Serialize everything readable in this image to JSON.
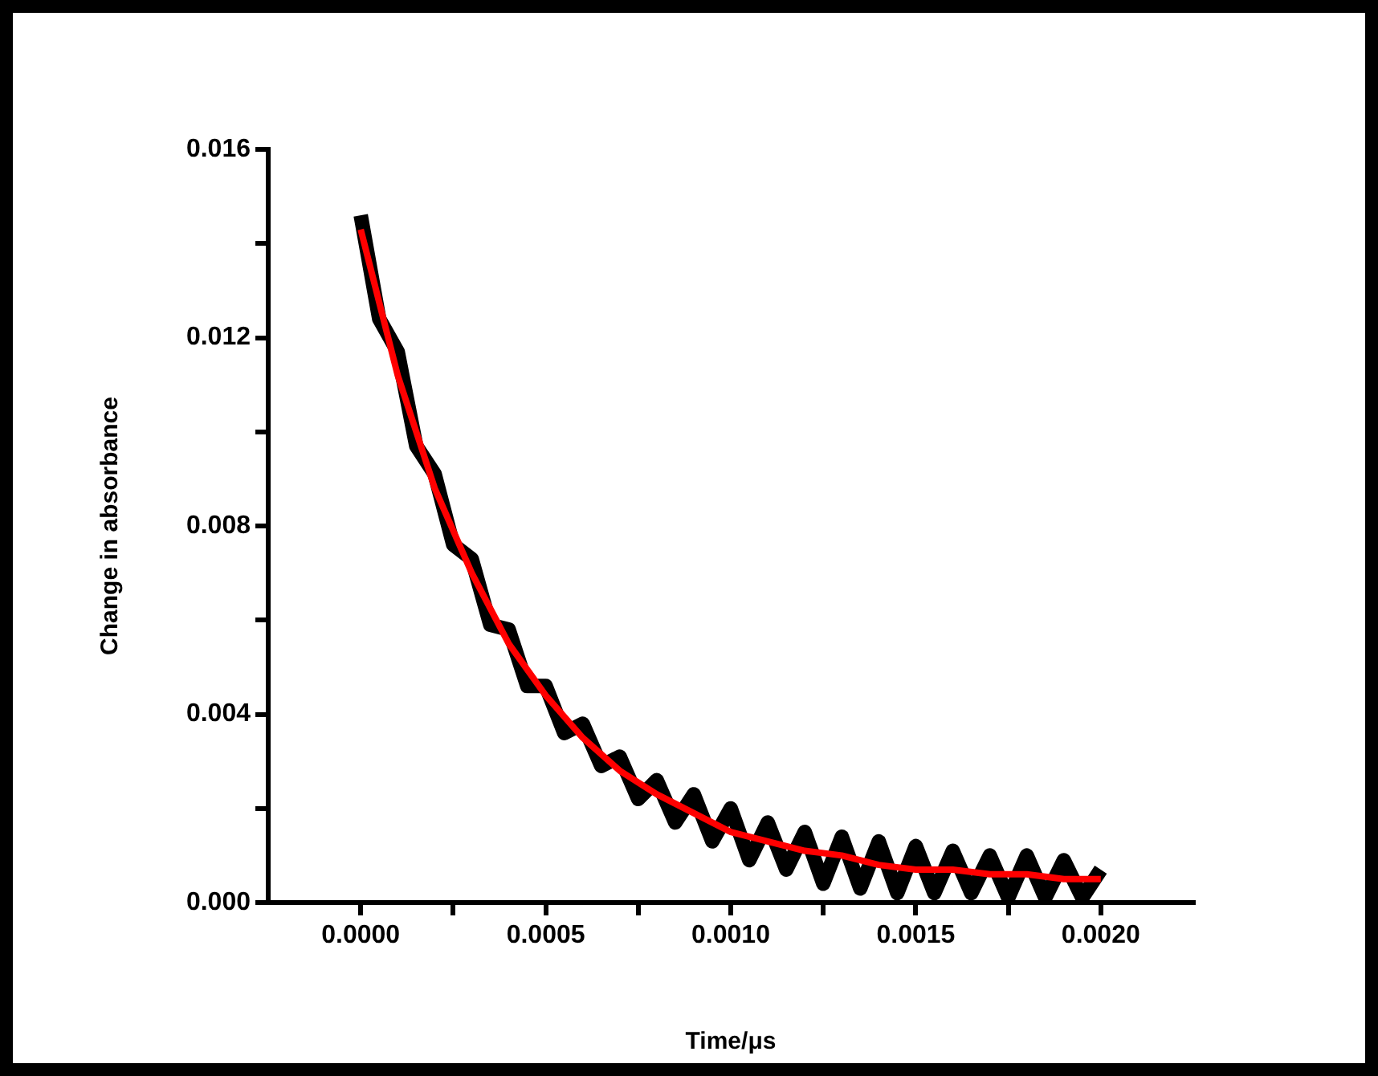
{
  "chart_data": {
    "type": "line",
    "xlabel": "Time/μs",
    "ylabel": "Change in absorbance",
    "xlim": [
      -0.00025,
      0.00225
    ],
    "xticks": [
      {
        "value": 0,
        "label": "0.0000"
      },
      {
        "value": 0.00025,
        "label": null
      },
      {
        "value": 0.0005,
        "label": "0.0005"
      },
      {
        "value": 0.00075,
        "label": null
      },
      {
        "value": 0.001,
        "label": "0.0010"
      },
      {
        "value": 0.00125,
        "label": null
      },
      {
        "value": 0.0015,
        "label": "0.0015"
      },
      {
        "value": 0.00175,
        "label": null
      },
      {
        "value": 0.002,
        "label": "0.0020"
      }
    ],
    "ylim": [
      0,
      0.016
    ],
    "yticks": [
      {
        "value": 0,
        "label": "0.000"
      },
      {
        "value": 0.002,
        "label": null
      },
      {
        "value": 0.004,
        "label": "0.004"
      },
      {
        "value": 0.006,
        "label": null
      },
      {
        "value": 0.008,
        "label": "0.008"
      },
      {
        "value": 0.01,
        "label": null
      },
      {
        "value": 0.012,
        "label": "0.012"
      },
      {
        "value": 0.014,
        "label": null
      },
      {
        "value": 0.016,
        "label": "0.016"
      }
    ],
    "grid": false,
    "legend": false,
    "marker": "none",
    "line_style": "solid",
    "series": [
      {
        "color": "#000000",
        "x": [
          0,
          5e-05,
          0.0001,
          0.00015,
          0.0002,
          0.00025,
          0.0003,
          0.00035,
          0.0004,
          0.00045,
          0.0005,
          0.00055,
          0.0006,
          0.00065,
          0.0007,
          0.00075,
          0.0008,
          0.00085,
          0.0009,
          0.00095,
          0.001,
          0.00105,
          0.0011,
          0.00115,
          0.0012,
          0.00125,
          0.0013,
          0.00135,
          0.0014,
          0.00145,
          0.0015,
          0.00155,
          0.0016,
          0.00165,
          0.0017,
          0.00175,
          0.0018,
          0.00185,
          0.0019,
          0.00195,
          0.002
        ],
        "values": [
          0.0146,
          0.0124,
          0.0117,
          0.0097,
          0.0091,
          0.0076,
          0.0073,
          0.0059,
          0.0058,
          0.0046,
          0.0046,
          0.0036,
          0.0038,
          0.0029,
          0.0031,
          0.0022,
          0.0026,
          0.0017,
          0.0023,
          0.0013,
          0.002,
          0.0009,
          0.0017,
          0.0007,
          0.0015,
          0.0004,
          0.0014,
          0.0003,
          0.0013,
          0.0002,
          0.0012,
          0.0002,
          0.0011,
          0.0002,
          0.001,
          0.0001,
          0.001,
          0.0001,
          0.0009,
          0.0001,
          0.0007
        ]
      },
      {
        "color": "#ff0000",
        "x": [
          0,
          0.0001,
          0.0002,
          0.0003,
          0.0004,
          0.0005,
          0.0006,
          0.0007,
          0.0008,
          0.0009,
          0.001,
          0.0011,
          0.0012,
          0.0013,
          0.0014,
          0.0015,
          0.0016,
          0.0017,
          0.0018,
          0.0019,
          0.002
        ],
        "values": [
          0.0143,
          0.0112,
          0.0088,
          0.007,
          0.0055,
          0.0044,
          0.0035,
          0.0028,
          0.0023,
          0.0019,
          0.0015,
          0.0013,
          0.0011,
          0.001,
          0.0008,
          0.0007,
          0.0007,
          0.0006,
          0.0006,
          0.0005,
          0.0005
        ]
      }
    ]
  }
}
